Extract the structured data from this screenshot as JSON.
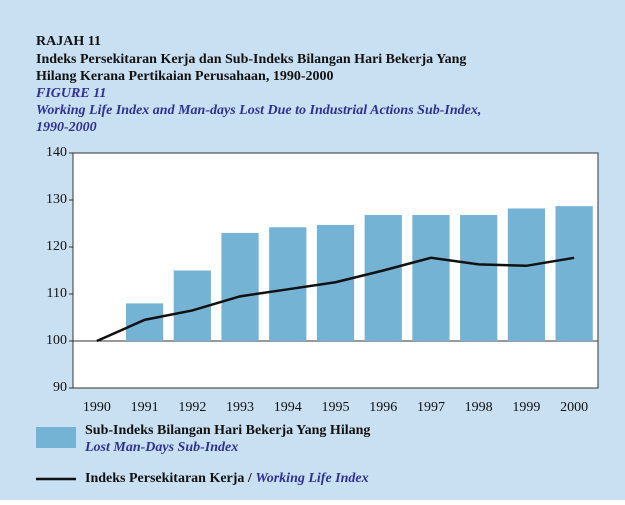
{
  "chart_data": {
    "type": "bar_line",
    "label": "RAJAH 11",
    "title": [
      "Indeks Persekitaran Kerja dan Sub-Indeks Bilangan Hari Bekerja Yang",
      "Hilang Kerana Pertikaian Perusahaan, 1990-2000"
    ],
    "label_en": "FIGURE 11",
    "title_en": [
      "Working Life Index and Man-days Lost Due to Industrial Actions Sub-Index,",
      "1990-2000"
    ],
    "categories": [
      "1990",
      "1991",
      "1992",
      "1993",
      "1994",
      "1995",
      "1996",
      "1997",
      "1998",
      "1999",
      "2000"
    ],
    "series": [
      {
        "name": "Sub-Indeks Bilangan Hari Bekerja Yang Hilang",
        "name_en": "Lost Man-Days Sub-Index",
        "type": "bar",
        "color": "#74b3d3",
        "values": [
          100,
          108,
          115,
          123,
          124.2,
          124.7,
          126.8,
          126.8,
          126.8,
          128.2,
          128.7
        ]
      },
      {
        "name": "Indeks Persekitaran Kerja /",
        "name_en": "Working Life Index",
        "type": "line",
        "color": "#111111",
        "values": [
          100,
          104.5,
          106.5,
          109.5,
          111,
          112.5,
          115,
          117.7,
          116.3,
          116,
          117.7
        ]
      }
    ],
    "baseline": 100,
    "ylim": [
      90,
      140
    ],
    "yticks": [
      90,
      100,
      110,
      120,
      130,
      140
    ],
    "grid": true
  }
}
